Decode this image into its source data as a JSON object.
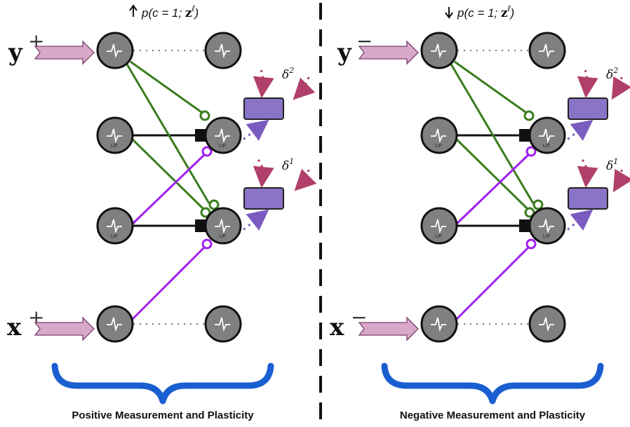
{
  "colors": {
    "neuron_fill": "#808080",
    "green_synapse": "#3a7d1e",
    "purple_synapse": "#a020f0",
    "input_arrow": "#d8a8c8",
    "plasticity_box": "#8a74c8",
    "feedback_pink": "#b0406a",
    "brace": "#1a5fd1"
  },
  "icons": [
    "spike-trace-icon",
    "input-arrow-icon",
    "up-arrow-icon",
    "down-arrow-icon",
    "curved-brace-icon"
  ],
  "left": {
    "title": "p(c = 1; zℓ)",
    "title_prefix": "p(c = 1; ",
    "title_z": "z",
    "title_ell": "ℓ",
    "title_suffix": ")",
    "label_y": "y",
    "label_y_sign": "+",
    "label_x": "x",
    "label_x_sign": "+",
    "delta2": "δ",
    "delta2_sup": "2",
    "delta1": "δ",
    "delta1_sup": "1",
    "lif": "LIF",
    "caption": "Positive Measurement and Plasticity"
  },
  "right": {
    "title": "p(c = 1; zℓ)",
    "title_prefix": "p(c = 1; ",
    "title_z": "z",
    "title_ell": "ℓ",
    "title_suffix": ")",
    "label_y": "y",
    "label_y_sign": "−",
    "label_x": "x",
    "label_x_sign": "−",
    "delta2": "δ",
    "delta2_sup": "2",
    "delta1": "δ",
    "delta1_sup": "1",
    "lif": "LIF",
    "caption": "Negative Measurement and Plasticity"
  }
}
